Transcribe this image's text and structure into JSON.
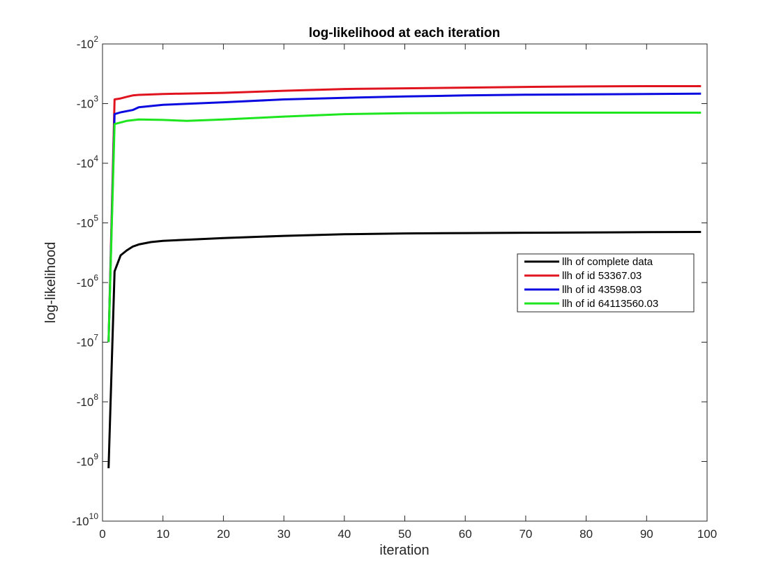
{
  "chart_data": {
    "type": "line",
    "title": "log-likelihood at each iteration",
    "xlabel": "iteration",
    "ylabel": "log-likelihood",
    "xlim": [
      0,
      100
    ],
    "ylim": [
      -10000000000,
      -100
    ],
    "yscale": "negative-log",
    "grid": false,
    "legend_position": "right",
    "x_ticks": [
      {
        "value": 0,
        "label": "0"
      },
      {
        "value": 10,
        "label": "10"
      },
      {
        "value": 20,
        "label": "20"
      },
      {
        "value": 30,
        "label": "30"
      },
      {
        "value": 40,
        "label": "40"
      },
      {
        "value": 50,
        "label": "50"
      },
      {
        "value": 60,
        "label": "60"
      },
      {
        "value": 70,
        "label": "70"
      },
      {
        "value": 80,
        "label": "80"
      },
      {
        "value": 90,
        "label": "90"
      },
      {
        "value": 100,
        "label": "100"
      }
    ],
    "y_ticks": [
      {
        "value": -100,
        "base": "-10",
        "exp": "2"
      },
      {
        "value": -1000,
        "base": "-10",
        "exp": "3"
      },
      {
        "value": -10000,
        "base": "-10",
        "exp": "4"
      },
      {
        "value": -100000,
        "base": "-10",
        "exp": "5"
      },
      {
        "value": -1000000,
        "base": "-10",
        "exp": "6"
      },
      {
        "value": -10000000,
        "base": "-10",
        "exp": "7"
      },
      {
        "value": -100000000,
        "base": "-10",
        "exp": "8"
      },
      {
        "value": -1000000000,
        "base": "-10",
        "exp": "9"
      },
      {
        "value": -10000000000,
        "base": "-10",
        "exp": "10"
      }
    ],
    "series": [
      {
        "name": "llh of complete data",
        "color": "#000000",
        "x": [
          1,
          2,
          3,
          4,
          5,
          6,
          8,
          10,
          15,
          20,
          30,
          40,
          50,
          60,
          70,
          80,
          90,
          99
        ],
        "y": [
          -1300000000,
          -650000,
          -350000,
          -290000,
          -250000,
          -230000,
          -210000,
          -200000,
          -190000,
          -180000,
          -165000,
          -155000,
          -150000,
          -148000,
          -146000,
          -145000,
          -143000,
          -142000
        ]
      },
      {
        "name": "llh of id 53367.03",
        "color": "#e0141e",
        "x": [
          1,
          2,
          3,
          4,
          5,
          6,
          10,
          20,
          30,
          40,
          50,
          60,
          70,
          80,
          90,
          99
        ],
        "y": [
          -10000000,
          -850,
          -820,
          -770,
          -730,
          -715,
          -690,
          -660,
          -610,
          -570,
          -555,
          -540,
          -525,
          -515,
          -510,
          -510
        ]
      },
      {
        "name": "llh of id 43598.03",
        "color": "#0a0ae0",
        "x": [
          1,
          2,
          3,
          5,
          6,
          10,
          20,
          30,
          40,
          50,
          60,
          70,
          80,
          90,
          99
        ],
        "y": [
          -10000000,
          -1500,
          -1400,
          -1280,
          -1150,
          -1050,
          -950,
          -850,
          -800,
          -760,
          -730,
          -710,
          -700,
          -690,
          -680
        ]
      },
      {
        "name": "llh of id 64113560.03",
        "color": "#1ee61e",
        "x": [
          1,
          2,
          4,
          6,
          10,
          14,
          20,
          30,
          40,
          50,
          60,
          70,
          80,
          90,
          99
        ],
        "y": [
          -10000000,
          -2200,
          -1950,
          -1850,
          -1880,
          -1950,
          -1850,
          -1650,
          -1500,
          -1450,
          -1430,
          -1420,
          -1420,
          -1420,
          -1420
        ]
      }
    ]
  }
}
